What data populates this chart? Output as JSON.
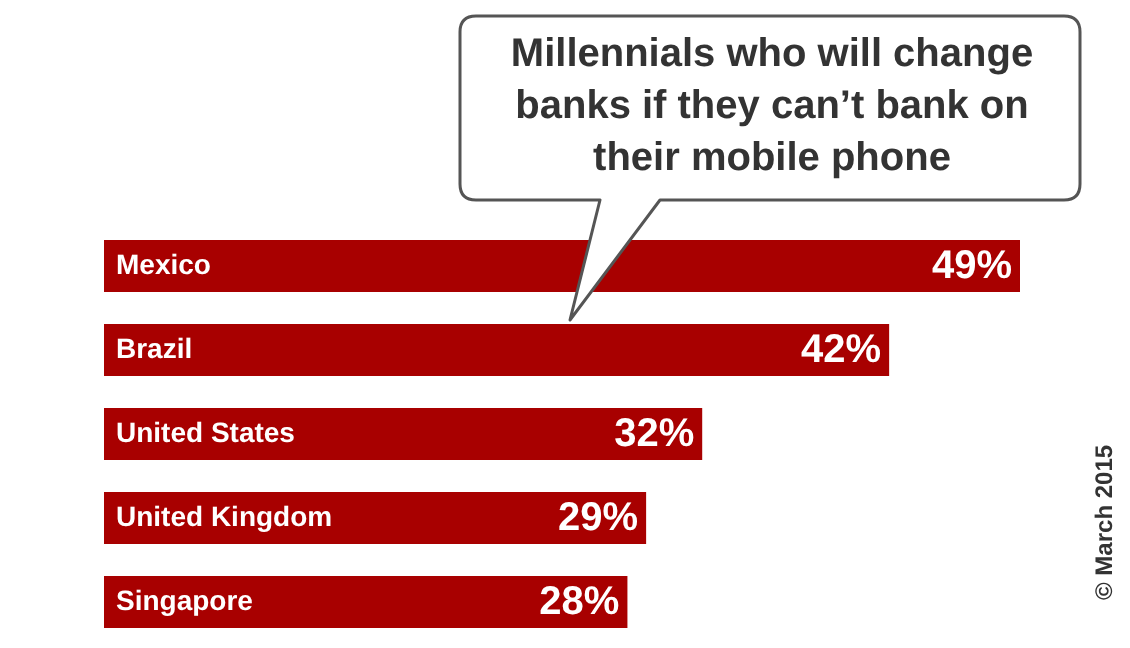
{
  "chart_data": {
    "type": "bar",
    "orientation": "horizontal",
    "title": "Millennials who will change banks if they can’t bank on their mobile phone",
    "categories": [
      "Mexico",
      "Brazil",
      "United States",
      "United Kingdom",
      "Singapore"
    ],
    "values": [
      49,
      42,
      32,
      29,
      28
    ],
    "value_labels": [
      "49%",
      "42%",
      "32%",
      "29%",
      "28%"
    ],
    "color": "#a80000",
    "annotations": [
      "© March 2015"
    ]
  }
}
